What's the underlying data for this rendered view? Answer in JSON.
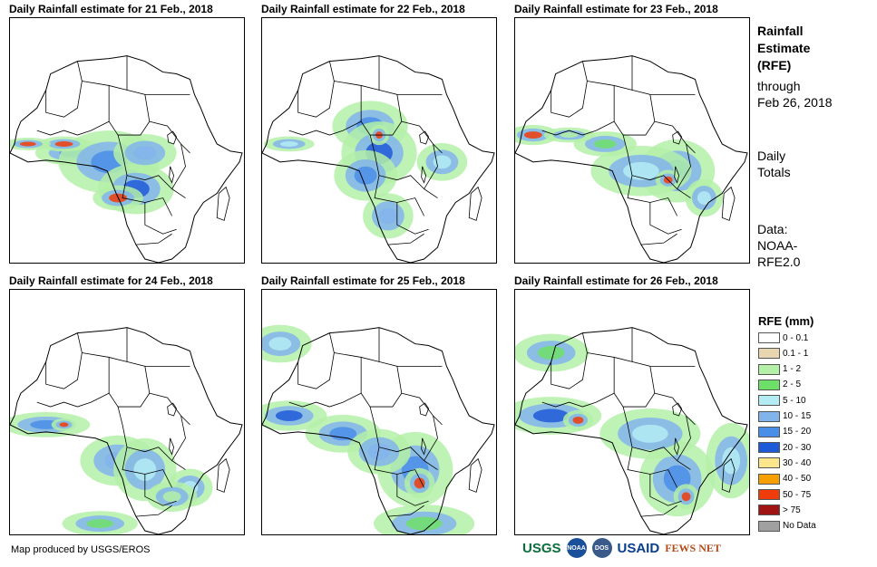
{
  "maps": [
    {
      "title": "Daily Rainfall estimate for 21 Feb., 2018"
    },
    {
      "title": "Daily Rainfall estimate for 22 Feb., 2018"
    },
    {
      "title": "Daily Rainfall estimate for 23 Feb., 2018"
    },
    {
      "title": "Daily Rainfall estimate for 24 Feb., 2018"
    },
    {
      "title": "Daily Rainfall estimate for 25 Feb., 2018"
    },
    {
      "title": "Daily Rainfall estimate for 26 Feb., 2018"
    }
  ],
  "side_info": {
    "heading_line1": "Rainfall",
    "heading_line2": "Estimate",
    "heading_line3": "(RFE)",
    "through": "through",
    "date": "Feb 26, 2018",
    "totals_line1": "Daily",
    "totals_line2": "Totals",
    "data_line1": "Data:",
    "data_line2": "NOAA-",
    "data_line3": "RFE2.0"
  },
  "legend": {
    "title": "RFE (mm)",
    "items": [
      {
        "label": "0 - 0.1",
        "color": "#ffffff"
      },
      {
        "label": "0.1 - 1",
        "color": "#e8d6b0"
      },
      {
        "label": "1 - 2",
        "color": "#b4f0a8"
      },
      {
        "label": "2 - 5",
        "color": "#6ee06a"
      },
      {
        "label": "5 - 10",
        "color": "#b4ecf4"
      },
      {
        "label": "10 - 15",
        "color": "#82b4ec"
      },
      {
        "label": "15 - 20",
        "color": "#4a8ee8"
      },
      {
        "label": "20 - 30",
        "color": "#1e5ad8"
      },
      {
        "label": "30 - 40",
        "color": "#fce68c"
      },
      {
        "label": "40 - 50",
        "color": "#f5a000"
      },
      {
        "label": "50 - 75",
        "color": "#f03c0a"
      },
      {
        "label": "> 75",
        "color": "#a01414"
      },
      {
        "label": "No Data",
        "color": "#a0a0a0"
      }
    ]
  },
  "footer": {
    "credit": "Map produced by USGS/EROS",
    "logo_usgs": "USGS",
    "logo_noaa": "NOAA",
    "logo_dos": "DOS",
    "logo_usaid": "USAID",
    "logo_fews": "FEWS NET"
  }
}
